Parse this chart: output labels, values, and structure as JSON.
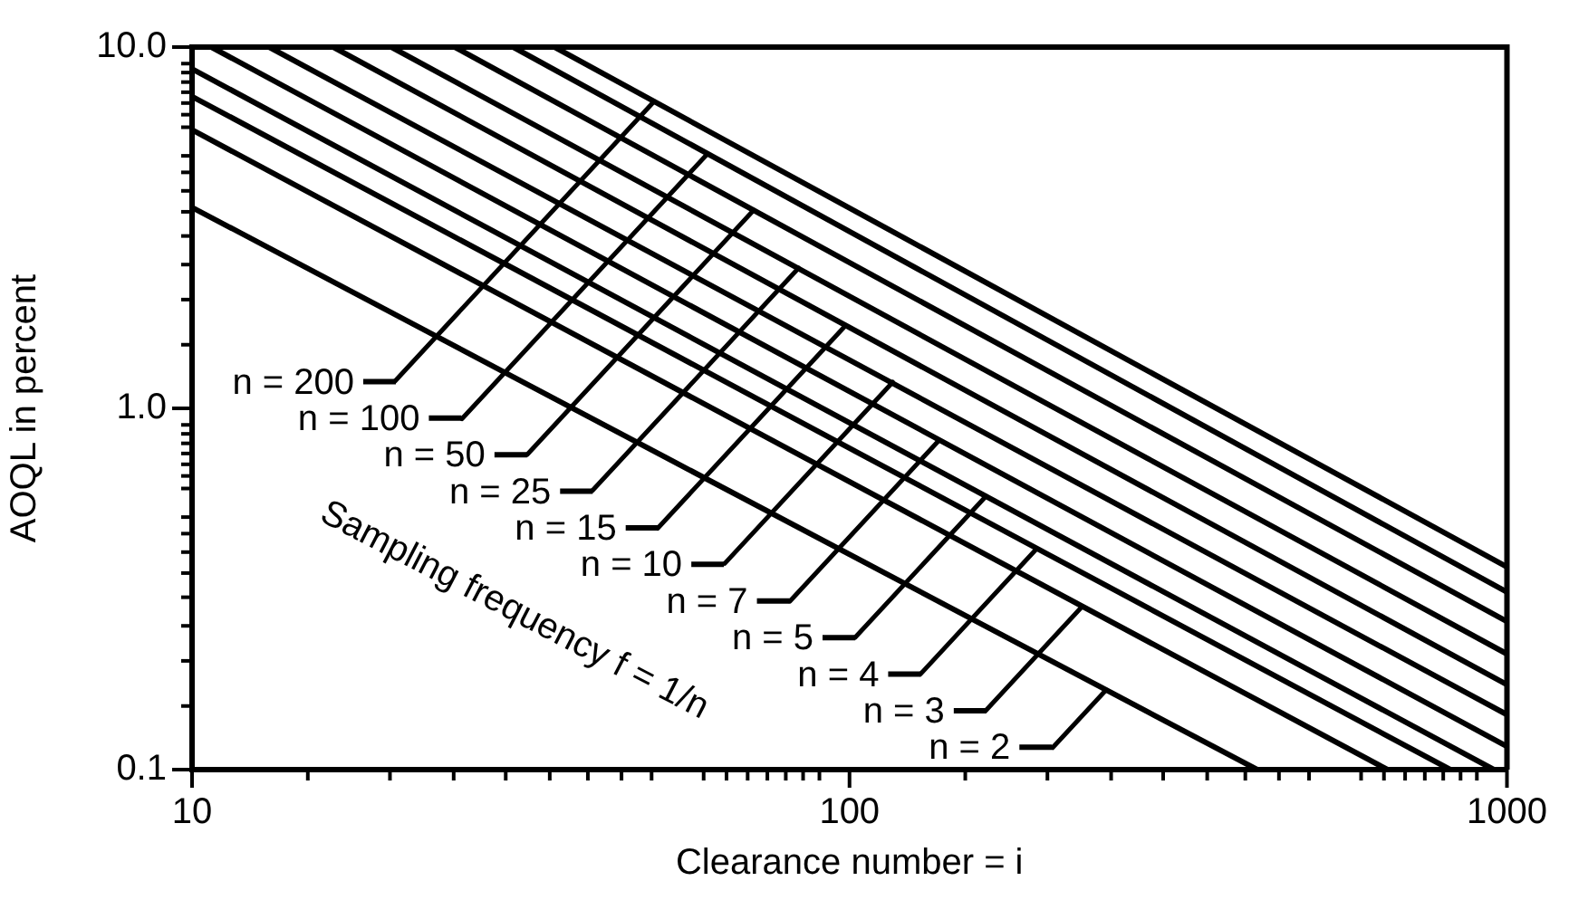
{
  "chart_data": {
    "type": "line",
    "xlabel": "Clearance number = i",
    "ylabel": "AOQL in percent",
    "log": "xy",
    "xlim": [
      10,
      1000
    ],
    "ylim": [
      0.1,
      10
    ],
    "xticks": [
      10,
      {
        "value": 15,
        "label": null
      },
      {
        "value": 20,
        "label": null
      },
      {
        "value": 25,
        "label": null
      },
      {
        "value": 30,
        "label": null
      },
      {
        "value": 35,
        "label": null
      },
      {
        "value": 40,
        "label": null
      },
      {
        "value": 45,
        "label": null
      },
      {
        "value": 50,
        "label": null
      },
      {
        "value": 60,
        "label": null
      },
      {
        "value": 65,
        "label": null
      },
      {
        "value": 70,
        "label": null
      },
      {
        "value": 75,
        "label": null
      },
      {
        "value": 80,
        "label": null
      },
      {
        "value": 85,
        "label": null
      },
      {
        "value": 90,
        "label": null
      },
      100,
      {
        "value": 150,
        "label": null
      },
      {
        "value": 200,
        "label": null
      },
      {
        "value": 250,
        "label": null
      },
      {
        "value": 300,
        "label": null
      },
      {
        "value": 350,
        "label": null
      },
      {
        "value": 400,
        "label": null
      },
      {
        "value": 450,
        "label": null
      },
      {
        "value": 500,
        "label": null
      },
      {
        "value": 600,
        "label": null
      },
      {
        "value": 650,
        "label": null
      },
      {
        "value": 700,
        "label": null
      },
      {
        "value": 750,
        "label": null
      },
      {
        "value": 800,
        "label": null
      },
      {
        "value": 850,
        "label": null
      },
      {
        "value": 900,
        "label": null
      },
      1000
    ],
    "yticks": [
      0.1,
      {
        "value": 0.15,
        "label": null
      },
      {
        "value": 0.2,
        "label": null
      },
      {
        "value": 0.25,
        "label": null
      },
      {
        "value": 0.3,
        "label": null
      },
      {
        "value": 0.35,
        "label": null
      },
      {
        "value": 0.4,
        "label": null
      },
      {
        "value": 0.45,
        "label": null
      },
      {
        "value": 0.5,
        "label": null
      },
      {
        "value": 0.6,
        "label": null
      },
      {
        "value": 0.65,
        "label": null
      },
      {
        "value": 0.7,
        "label": null
      },
      {
        "value": 0.75,
        "label": null
      },
      {
        "value": 0.8,
        "label": null
      },
      {
        "value": 0.85,
        "label": null
      },
      {
        "value": 0.9,
        "label": null
      },
      {
        "value": 1,
        "label": "1.0"
      },
      {
        "value": 1.5,
        "label": null
      },
      {
        "value": 2,
        "label": null
      },
      {
        "value": 2.5,
        "label": null
      },
      {
        "value": 3,
        "label": null
      },
      {
        "value": 3.5,
        "label": null
      },
      {
        "value": 4,
        "label": null
      },
      {
        "value": 4.5,
        "label": null
      },
      {
        "value": 5,
        "label": null
      },
      {
        "value": 6,
        "label": null
      },
      {
        "value": 6.5,
        "label": null
      },
      {
        "value": 7,
        "label": null
      },
      {
        "value": 7.5,
        "label": null
      },
      {
        "value": 8,
        "label": null
      },
      {
        "value": 8.5,
        "label": null
      },
      {
        "value": 9,
        "label": null
      },
      {
        "value": 10,
        "label": "10.0"
      }
    ],
    "legend": "bottom left",
    "legend_title": "Sampling frequency f = 1/n",
    "series": [
      {
        "name": "n = 2",
        "color": "#000000",
        "x": [
          10,
          417
        ],
        "values": [
          3.6,
          0.1
        ]
      },
      {
        "name": "n = 3",
        "color": "#000000",
        "x": [
          10,
          658
        ],
        "values": [
          5.9,
          0.1
        ]
      },
      {
        "name": "n = 4",
        "color": "#000000",
        "x": [
          10,
          820
        ],
        "values": [
          7.3,
          0.1
        ]
      },
      {
        "name": "n = 5",
        "color": "#000000",
        "x": [
          10,
          955
        ],
        "values": [
          8.7,
          0.1
        ]
      },
      {
        "name": "n = 7",
        "color": "#000000",
        "x": [
          10.7,
          1000
        ],
        "values": [
          10,
          0.116
        ]
      },
      {
        "name": "n = 10",
        "color": "#000000",
        "x": [
          13.1,
          1000
        ],
        "values": [
          10,
          0.142
        ]
      },
      {
        "name": "n = 15",
        "color": "#000000",
        "x": [
          16.4,
          1000
        ],
        "values": [
          10,
          0.172
        ]
      },
      {
        "name": "n = 25",
        "color": "#000000",
        "x": [
          20.1,
          1000
        ],
        "values": [
          10,
          0.209
        ]
      },
      {
        "name": "n = 50",
        "color": "#000000",
        "x": [
          25.1,
          1000
        ],
        "values": [
          10,
          0.257
        ]
      },
      {
        "name": "n = 100",
        "color": "#000000",
        "x": [
          30.8,
          1000
        ],
        "values": [
          10,
          0.31
        ]
      },
      {
        "name": "n = 200",
        "color": "#000000",
        "x": [
          35.6,
          1000
        ],
        "values": [
          10,
          0.364
        ]
      }
    ]
  }
}
